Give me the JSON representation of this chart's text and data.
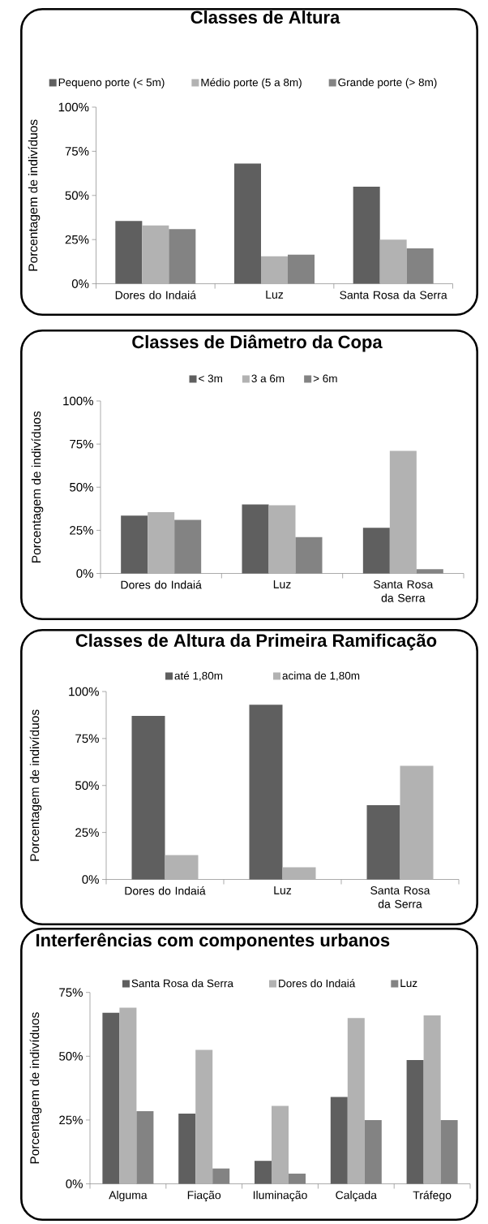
{
  "chart_data": [
    {
      "type": "bar",
      "title": "Classes de Altura",
      "ylabel": "Porcentagem de indivíduos",
      "categories": [
        "Dores do Indaiá",
        "Luz",
        "Santa Rosa da Serra"
      ],
      "series": [
        {
          "name": "Pequeno porte (< 5m)",
          "color": "#5f5f5f",
          "values": [
            35.5,
            68,
            55
          ]
        },
        {
          "name": "Médio porte (5 a 8m)",
          "color": "#b2b2b2",
          "values": [
            33,
            15.5,
            25
          ]
        },
        {
          "name": "Grande porte (> 8m)",
          "color": "#838383",
          "values": [
            31,
            16.5,
            20
          ]
        }
      ],
      "ylim": [
        0,
        100
      ],
      "yticks": [
        {
          "value": 0,
          "label": "0%"
        },
        {
          "value": 25,
          "label": "25%"
        },
        {
          "value": 50,
          "label": "50%"
        },
        {
          "value": 75,
          "label": "75%"
        },
        {
          "value": 100,
          "label": "100%"
        }
      ],
      "legend": "top"
    },
    {
      "type": "bar",
      "title": "Classes de Diâmetro da Copa",
      "ylabel": "Porcentagem de indivíduos",
      "categories": [
        "Dores do Indaiá",
        "Luz",
        "Santa Rosa da Serra"
      ],
      "series": [
        {
          "name": "< 3m",
          "color": "#5f5f5f",
          "values": [
            33.5,
            40,
            26.5
          ]
        },
        {
          "name": "3 a 6m",
          "color": "#b2b2b2",
          "values": [
            35.5,
            39.5,
            71
          ]
        },
        {
          "name": "> 6m",
          "color": "#838383",
          "values": [
            31,
            21,
            2.5
          ]
        }
      ],
      "ylim": [
        0,
        100
      ],
      "yticks": [
        {
          "value": 0,
          "label": "0%"
        },
        {
          "value": 25,
          "label": "25%"
        },
        {
          "value": 50,
          "label": "50%"
        },
        {
          "value": 75,
          "label": "75%"
        },
        {
          "value": 100,
          "label": "100%"
        }
      ],
      "legend": "top"
    },
    {
      "type": "bar",
      "title": "Classes de Altura da Primeira Ramificação",
      "ylabel": "Porcentagem de indivíduos",
      "categories": [
        "Dores do Indaiá",
        "Luz",
        "Santa Rosa da Serra"
      ],
      "series": [
        {
          "name": "até 1,80m",
          "color": "#5f5f5f",
          "values": [
            87,
            93,
            39.5
          ]
        },
        {
          "name": "acima de 1,80m",
          "color": "#b2b2b2",
          "values": [
            13,
            6.5,
            60.5
          ]
        }
      ],
      "ylim": [
        0,
        100
      ],
      "yticks": [
        {
          "value": 0,
          "label": "0%"
        },
        {
          "value": 25,
          "label": "25%"
        },
        {
          "value": 50,
          "label": "50%"
        },
        {
          "value": 75,
          "label": "75%"
        },
        {
          "value": 100,
          "label": "100%"
        }
      ],
      "legend": "top"
    },
    {
      "type": "bar",
      "title": "Interferências com componentes urbanos",
      "ylabel": "Porcentagem de indivíduos",
      "categories": [
        "Alguma",
        "Fiação",
        "Iluminação",
        "Calçada",
        "Tráfego"
      ],
      "series": [
        {
          "name": "Santa Rosa da Serra",
          "color": "#5f5f5f",
          "values": [
            67,
            27.5,
            9,
            34,
            48.5
          ]
        },
        {
          "name": "Dores do Indaiá",
          "color": "#b2b2b2",
          "values": [
            69,
            52.5,
            30.5,
            65,
            66
          ]
        },
        {
          "name": "Luz",
          "color": "#838383",
          "values": [
            28.5,
            6,
            4,
            25,
            25
          ]
        }
      ],
      "ylim": [
        0,
        75
      ],
      "yticks": [
        {
          "value": 0,
          "label": "0%"
        },
        {
          "value": 25,
          "label": "25%"
        },
        {
          "value": 50,
          "label": "50%"
        },
        {
          "value": 75,
          "label": "75%"
        }
      ],
      "legend": "top"
    }
  ]
}
